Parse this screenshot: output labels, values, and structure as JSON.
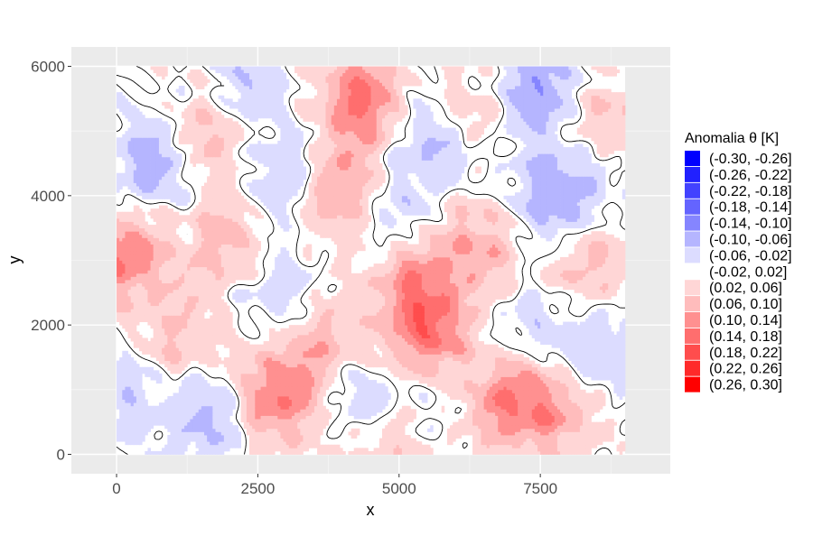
{
  "chart_data": {
    "type": "heatmap",
    "title": "",
    "xlabel": "x",
    "ylabel": "y",
    "xlim": [
      -800,
      9800
    ],
    "ylim": [
      -300,
      6300
    ],
    "data_extent": {
      "x": [
        0,
        9000
      ],
      "y": [
        0,
        6000
      ]
    },
    "x_ticks": [
      {
        "value": 0,
        "label": "0"
      },
      {
        "value": 2500,
        "label": "2500"
      },
      {
        "value": 5000,
        "label": "5000"
      },
      {
        "value": 7500,
        "label": "7500"
      }
    ],
    "y_ticks": [
      {
        "value": 0,
        "label": "0"
      },
      {
        "value": 2000,
        "label": "2000"
      },
      {
        "value": 4000,
        "label": "4000"
      },
      {
        "value": 6000,
        "label": "6000"
      }
    ],
    "grid": true,
    "contour_level": 0,
    "legend": {
      "title": "Anomalia θ [K]",
      "position": "right",
      "bins": [
        {
          "label": "(-0.30, -0.26]",
          "color": "#0000ff"
        },
        {
          "label": "(-0.26, -0.22]",
          "color": "#2121ff"
        },
        {
          "label": "(-0.22, -0.18]",
          "color": "#4242ff"
        },
        {
          "label": "(-0.18, -0.14]",
          "color": "#6464ff"
        },
        {
          "label": "(-0.14, -0.10]",
          "color": "#8585ff"
        },
        {
          "label": "(-0.10, -0.06]",
          "color": "#b5b5ff"
        },
        {
          "label": "(-0.06, -0.02]",
          "color": "#dcdcff"
        },
        {
          "label": "(-0.02, 0.02]",
          "color": "#ffffff"
        },
        {
          "label": "(0.02, 0.06]",
          "color": "#ffd6d6"
        },
        {
          "label": "(0.06, 0.10]",
          "color": "#ffbcbc"
        },
        {
          "label": "(0.10, 0.14]",
          "color": "#ff9090"
        },
        {
          "label": "(0.14, 0.18]",
          "color": "#ff6e6e"
        },
        {
          "label": "(0.18, 0.22]",
          "color": "#ff4d4d"
        },
        {
          "label": "(0.22, 0.26]",
          "color": "#ff2a2a"
        },
        {
          "label": "(0.26, 0.30]",
          "color": "#ff0000"
        }
      ]
    },
    "field_centers": [
      {
        "x": 4400,
        "y": 5500,
        "value": 0.16
      },
      {
        "x": 3900,
        "y": 4100,
        "value": 0.12
      },
      {
        "x": 100,
        "y": 3100,
        "value": 0.14
      },
      {
        "x": 2000,
        "y": 3300,
        "value": 0.09
      },
      {
        "x": 5300,
        "y": 2700,
        "value": 0.12
      },
      {
        "x": 6500,
        "y": 3300,
        "value": 0.09
      },
      {
        "x": 8300,
        "y": 2900,
        "value": 0.08
      },
      {
        "x": 8600,
        "y": 5000,
        "value": 0.08
      },
      {
        "x": 1700,
        "y": 5000,
        "value": 0.07
      },
      {
        "x": 2800,
        "y": 900,
        "value": 0.14
      },
      {
        "x": 5600,
        "y": 1800,
        "value": 0.15
      },
      {
        "x": 6900,
        "y": 900,
        "value": 0.14
      },
      {
        "x": 7800,
        "y": 700,
        "value": 0.1
      },
      {
        "x": 3600,
        "y": 1700,
        "value": 0.09
      },
      {
        "x": 4700,
        "y": 100,
        "value": 0.07
      },
      {
        "x": 6200,
        "y": 5300,
        "value": 0.06
      },
      {
        "x": 1000,
        "y": 1700,
        "value": 0.07
      },
      {
        "x": 600,
        "y": 4500,
        "value": -0.08
      },
      {
        "x": 3000,
        "y": 4300,
        "value": -0.07
      },
      {
        "x": 5500,
        "y": 4900,
        "value": -0.08
      },
      {
        "x": 7400,
        "y": 5600,
        "value": -0.09
      },
      {
        "x": 8100,
        "y": 4200,
        "value": -0.08
      },
      {
        "x": 4300,
        "y": 800,
        "value": -0.07
      },
      {
        "x": 1600,
        "y": 600,
        "value": -0.08
      },
      {
        "x": 7400,
        "y": 1800,
        "value": -0.07
      },
      {
        "x": 4800,
        "y": 3700,
        "value": -0.05
      },
      {
        "x": 2900,
        "y": 2500,
        "value": -0.06
      },
      {
        "x": 6000,
        "y": 1100,
        "value": -0.05
      },
      {
        "x": 8600,
        "y": 1500,
        "value": -0.06
      },
      {
        "x": 7400,
        "y": 3800,
        "value": -0.06
      },
      {
        "x": 300,
        "y": 900,
        "value": -0.05
      },
      {
        "x": 2300,
        "y": 5700,
        "value": -0.05
      }
    ]
  }
}
